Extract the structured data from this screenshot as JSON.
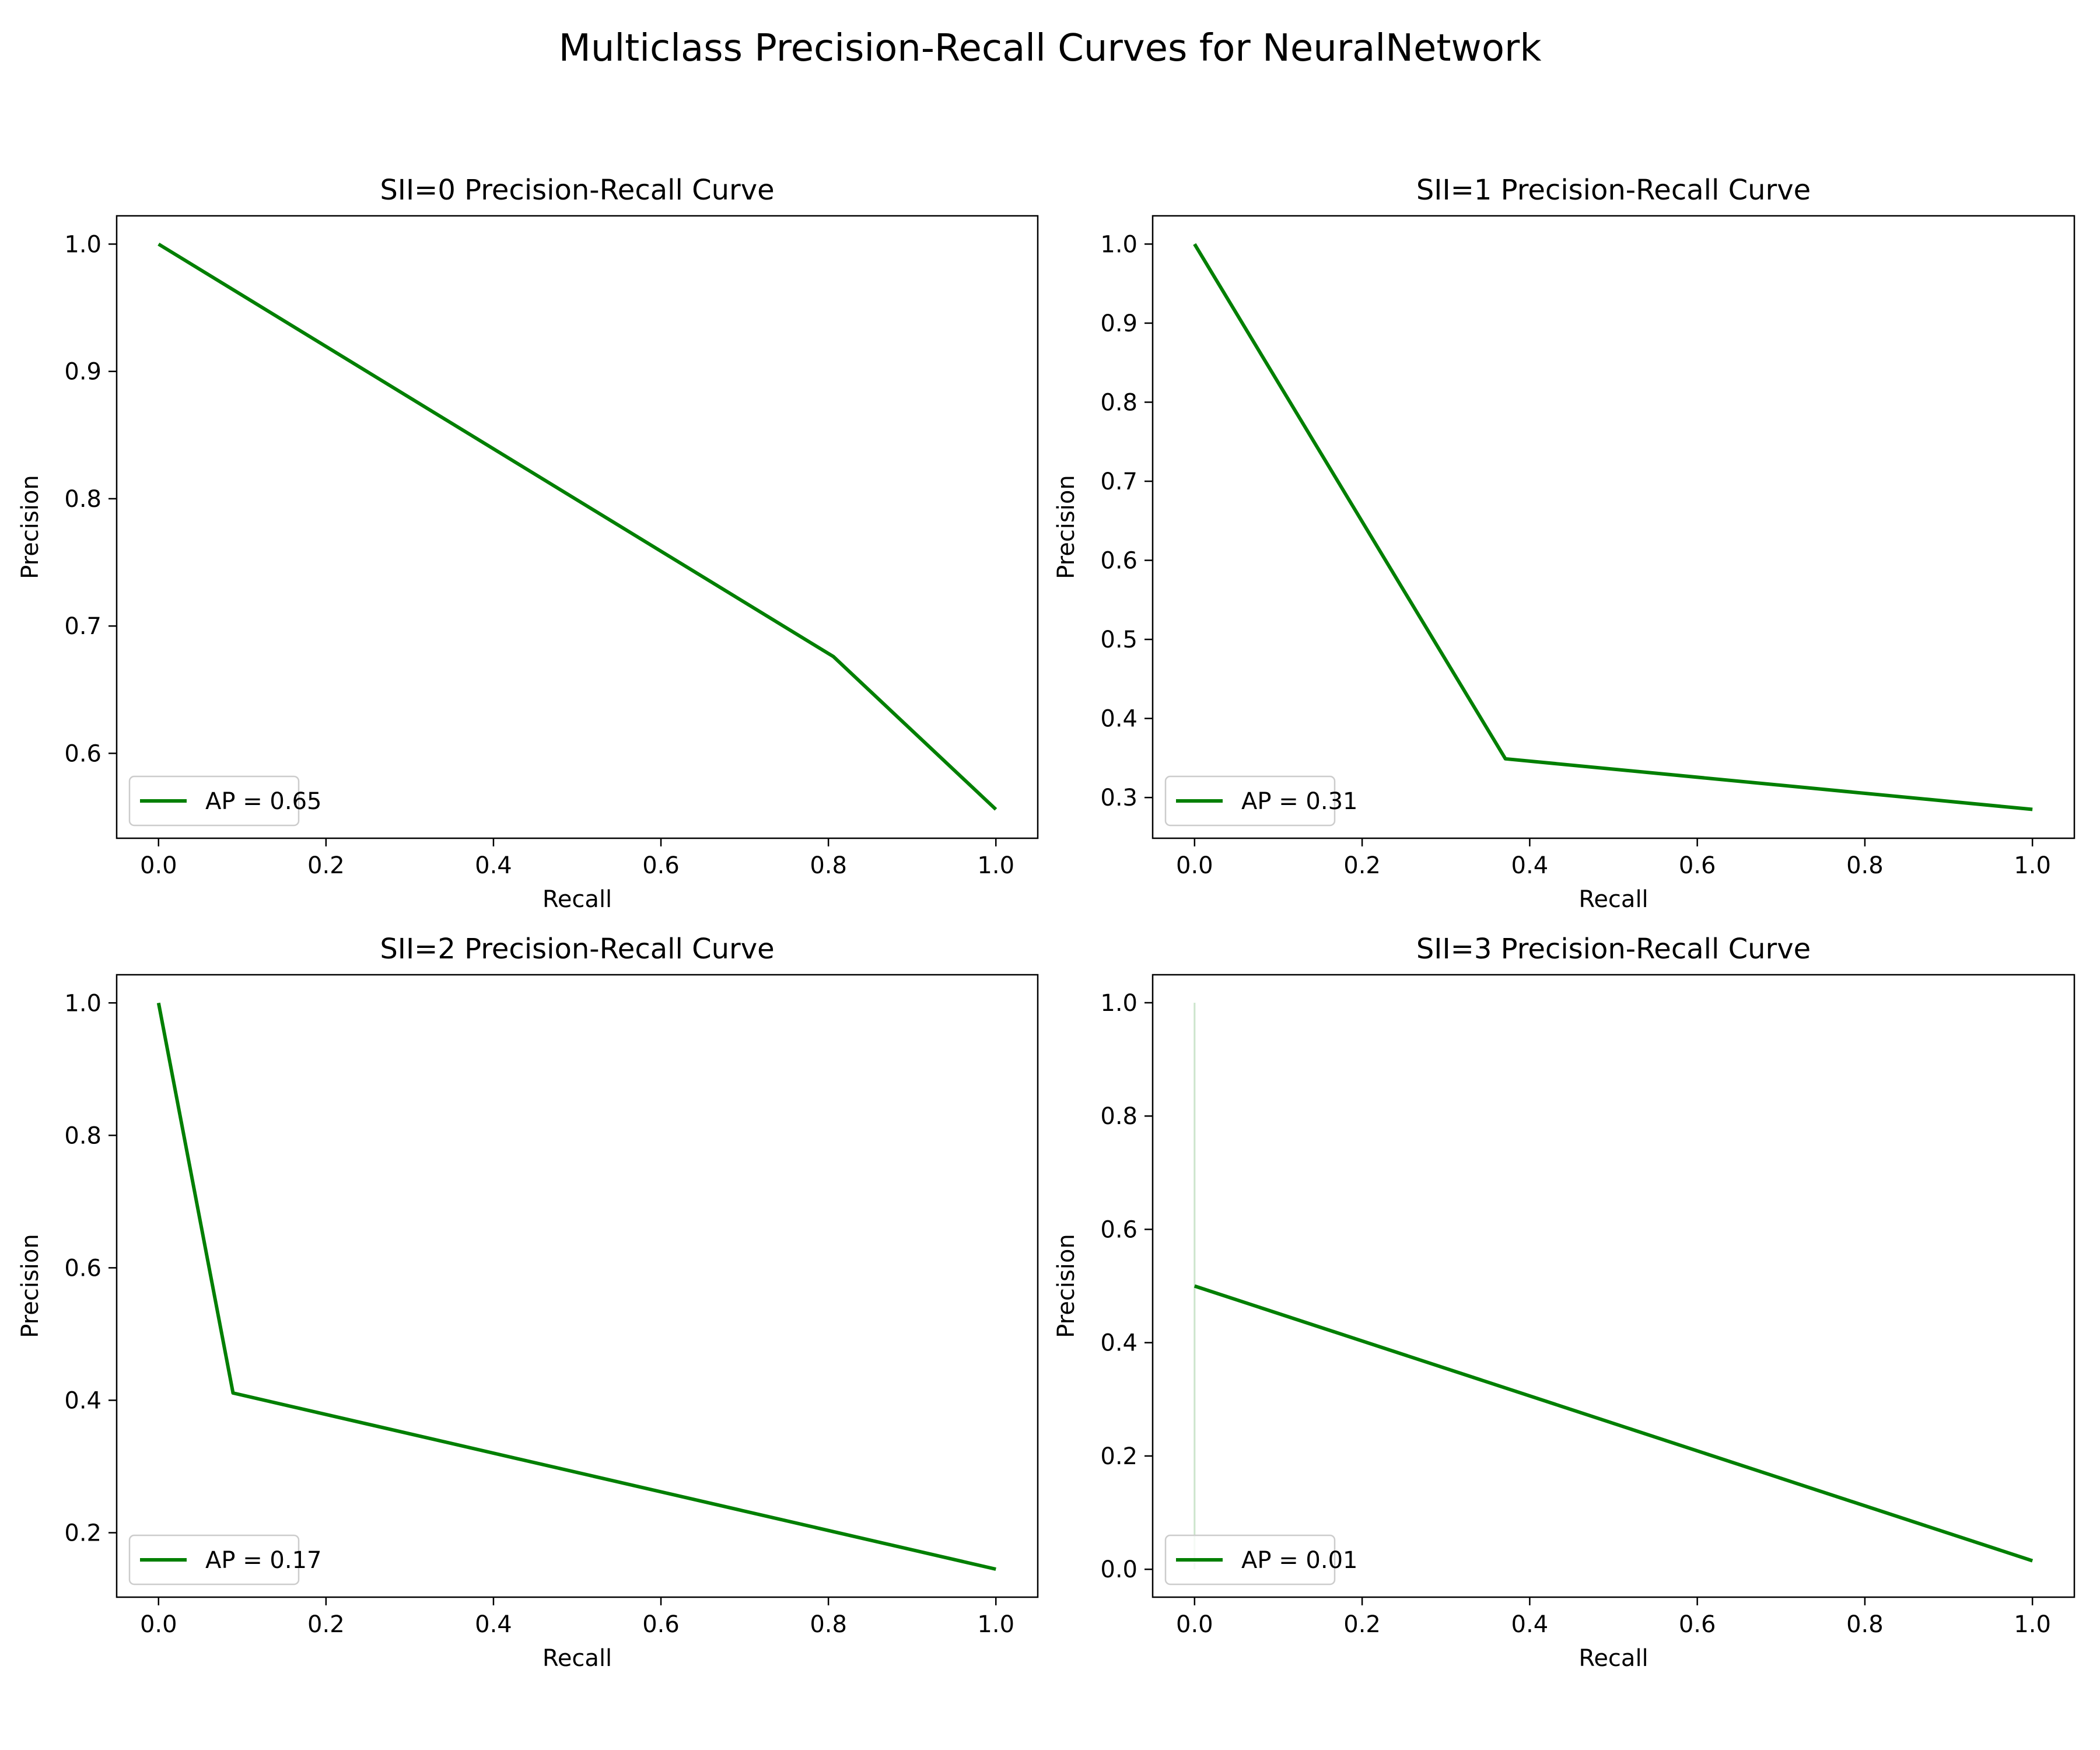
{
  "figure": {
    "title": "Multiclass Precision-Recall Curves for NeuralNetwork"
  },
  "colors": {
    "curve": "#007f00",
    "reference_line": "#007f00"
  },
  "chart_data": [
    {
      "type": "line",
      "title": "SII=0 Precision-Recall Curve",
      "xlabel": "Recall",
      "ylabel": "Precision",
      "xlim": [
        -0.05,
        1.05
      ],
      "ylim": [
        0.5333,
        1.0222
      ],
      "xticks": [
        0.0,
        0.2,
        0.4,
        0.6,
        0.8,
        1.0
      ],
      "yticks": [
        0.6,
        0.7,
        0.8,
        0.9,
        1.0
      ],
      "tick_decimals": 1,
      "legend_position": "lower left",
      "series": [
        {
          "name": "AP = 0.65",
          "x": [
            0.0,
            0.806,
            1.0
          ],
          "y": [
            1.0,
            0.676,
            0.556
          ]
        }
      ]
    },
    {
      "type": "line",
      "title": "SII=1 Precision-Recall Curve",
      "xlabel": "Recall",
      "ylabel": "Precision",
      "xlim": [
        -0.05,
        1.05
      ],
      "ylim": [
        0.2485,
        1.0357
      ],
      "xticks": [
        0.0,
        0.2,
        0.4,
        0.6,
        0.8,
        1.0
      ],
      "yticks": [
        0.3,
        0.4,
        0.5,
        0.6,
        0.7,
        0.8,
        0.9,
        1.0
      ],
      "tick_decimals": 1,
      "legend_position": "lower left",
      "series": [
        {
          "name": "AP = 0.31",
          "x": [
            0.0,
            0.371,
            1.0
          ],
          "y": [
            1.0,
            0.349,
            0.285
          ]
        }
      ]
    },
    {
      "type": "line",
      "title": "SII=2 Precision-Recall Curve",
      "xlabel": "Recall",
      "ylabel": "Precision",
      "xlim": [
        -0.05,
        1.05
      ],
      "ylim": [
        0.1027,
        1.0425
      ],
      "xticks": [
        0.0,
        0.2,
        0.4,
        0.6,
        0.8,
        1.0
      ],
      "yticks": [
        0.2,
        0.4,
        0.6,
        0.8,
        1.0
      ],
      "tick_decimals": 1,
      "legend_position": "lower left",
      "series": [
        {
          "name": "AP = 0.17",
          "x": [
            0.0,
            0.089,
            1.0
          ],
          "y": [
            1.0,
            0.411,
            0.145
          ]
        }
      ]
    },
    {
      "type": "line",
      "title": "SII=3 Precision-Recall Curve",
      "xlabel": "Recall",
      "ylabel": "Precision",
      "xlim": [
        -0.05,
        1.05
      ],
      "ylim": [
        -0.0492,
        1.0494
      ],
      "xticks": [
        0.0,
        0.2,
        0.4,
        0.6,
        0.8,
        1.0
      ],
      "yticks": [
        0.0,
        0.2,
        0.4,
        0.6,
        0.8,
        1.0
      ],
      "tick_decimals": 1,
      "legend_position": "lower left",
      "series": [
        {
          "name": "AP = 0.01",
          "x": [
            0.0,
            1.0
          ],
          "y": [
            0.5,
            0.015
          ]
        }
      ],
      "reference_lines": [
        {
          "x": [
            0.0,
            0.0
          ],
          "y": [
            0.0,
            1.0
          ]
        }
      ]
    }
  ]
}
